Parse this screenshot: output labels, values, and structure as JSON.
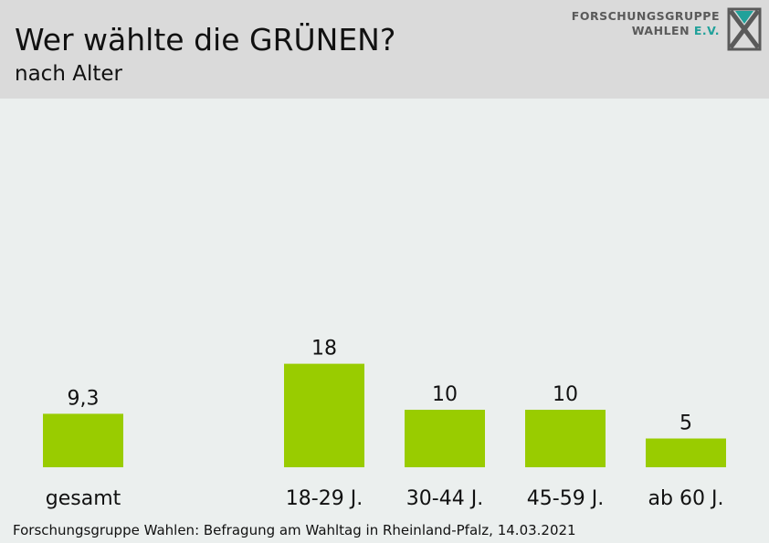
{
  "header": {
    "title": "Wer wählte die GRÜNEN?",
    "subtitle": "nach Alter"
  },
  "logo": {
    "line1": "FORSCHUNGSGRUPPE",
    "line2_prefix": "WAHLEN",
    "line2_suffix": "E.V.",
    "icon": "forschungsgruppe-x-logo-icon"
  },
  "footer": {
    "source": "Forschungsgruppe Wahlen: Befragung am Wahltag in Rheinland-Pfalz, 14.03.2021"
  },
  "colors": {
    "bar": "#99cc00",
    "header_background": "#dadada",
    "background": "#ebefee",
    "logo_accent": "#21a19a"
  },
  "chart_data": {
    "type": "bar",
    "title": "Wer wählte die GRÜNEN?",
    "subtitle": "nach Alter",
    "unit": "%",
    "categories": [
      "gesamt",
      "18-29 J.",
      "30-44 J.",
      "45-59 J.",
      "ab 60 J."
    ],
    "values": [
      9.3,
      18,
      10,
      10,
      5
    ],
    "value_labels": [
      "9,3",
      "18",
      "10",
      "10",
      "5"
    ],
    "grid": false,
    "legend": "none"
  }
}
